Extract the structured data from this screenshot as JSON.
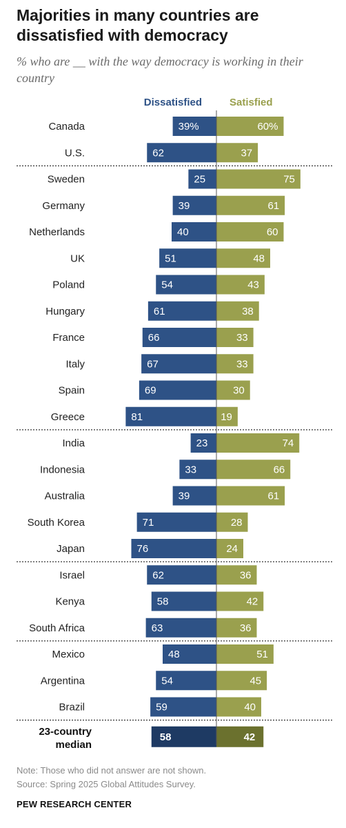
{
  "title": "Majorities in many countries are dissatisfied with democracy",
  "subtitle": "% who are __ with the way democracy is working in their country",
  "note": "Note: Those who did not answer are not shown.",
  "source": "Source: Spring 2025 Global Attitudes Survey.",
  "brand": "PEW RESEARCH CENTER",
  "colors": {
    "dissatisfied": "#2e5286",
    "satisfied": "#9aa04e",
    "median_dissatisfied": "#1e3a63",
    "median_satisfied": "#6b712e"
  },
  "chart_data": {
    "type": "bar",
    "orientation": "horizontal-diverging",
    "series": [
      {
        "name": "Dissatisfied",
        "values": [
          39,
          62,
          25,
          39,
          40,
          51,
          54,
          61,
          66,
          67,
          69,
          81,
          23,
          33,
          39,
          71,
          76,
          62,
          58,
          63,
          48,
          54,
          59
        ]
      },
      {
        "name": "Satisfied",
        "values": [
          60,
          37,
          75,
          61,
          60,
          48,
          43,
          38,
          33,
          33,
          30,
          19,
          74,
          66,
          61,
          28,
          24,
          36,
          42,
          36,
          51,
          45,
          40
        ]
      }
    ],
    "categories": [
      "Canada",
      "U.S.",
      "Sweden",
      "Germany",
      "Netherlands",
      "UK",
      "Poland",
      "Hungary",
      "France",
      "Italy",
      "Spain",
      "Greece",
      "India",
      "Indonesia",
      "Australia",
      "South Korea",
      "Japan",
      "Israel",
      "Kenya",
      "South Africa",
      "Mexico",
      "Argentina",
      "Brazil"
    ],
    "value_labels": {
      "dissatisfied": [
        "39%",
        "62",
        "25",
        "39",
        "40",
        "51",
        "54",
        "61",
        "66",
        "67",
        "69",
        "81",
        "23",
        "33",
        "39",
        "71",
        "76",
        "62",
        "58",
        "63",
        "48",
        "54",
        "59"
      ],
      "satisfied": [
        "60%",
        "37",
        "75",
        "61",
        "60",
        "48",
        "43",
        "38",
        "33",
        "33",
        "30",
        "19",
        "74",
        "66",
        "61",
        "28",
        "24",
        "36",
        "42",
        "36",
        "51",
        "45",
        "40"
      ]
    },
    "group_dividers_after": [
      "U.S.",
      "Greece",
      "Japan",
      "South Africa",
      "Brazil"
    ],
    "median": {
      "label": [
        "23-country",
        "median"
      ],
      "dissatisfied": 58,
      "satisfied": 42
    },
    "xlim": [
      0,
      100
    ]
  }
}
